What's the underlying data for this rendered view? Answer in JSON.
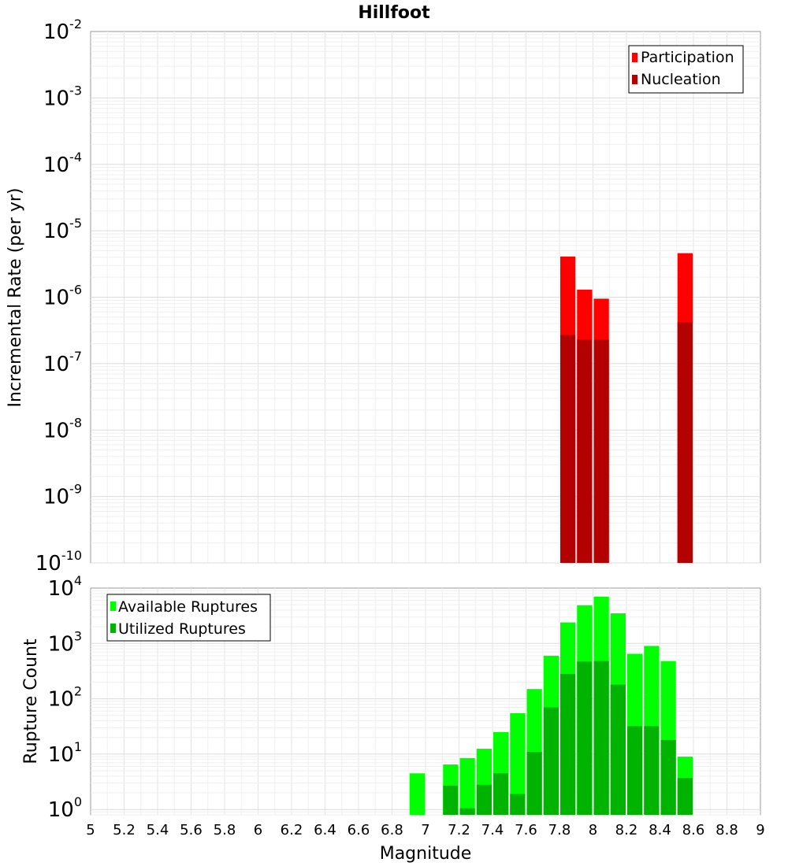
{
  "title": "Hillfoot",
  "chart_data": [
    {
      "type": "bar",
      "scale_y": "log",
      "ylabel": "Incremental Rate (per yr)",
      "ylim": [
        1e-10,
        0.01
      ],
      "xlim": [
        5,
        9
      ],
      "y_tick_labels": [
        {
          "base": "10",
          "exp": "-10",
          "v": 1e-10
        },
        {
          "base": "10",
          "exp": "-9",
          "v": 1e-09
        },
        {
          "base": "10",
          "exp": "-8",
          "v": 1e-08
        },
        {
          "base": "10",
          "exp": "-7",
          "v": 1e-07
        },
        {
          "base": "10",
          "exp": "-6",
          "v": 1e-06
        },
        {
          "base": "10",
          "exp": "-5",
          "v": 1e-05
        },
        {
          "base": "10",
          "exp": "-4",
          "v": 0.0001
        },
        {
          "base": "10",
          "exp": "-3",
          "v": 0.001
        },
        {
          "base": "10",
          "exp": "-2",
          "v": 0.01
        }
      ],
      "legend": {
        "placement": "top-right",
        "entries": [
          "Participation",
          "Nucleation"
        ]
      },
      "series": [
        {
          "name": "Participation",
          "color": "#ff0000",
          "points": [
            [
              7.85,
              4.1e-06
            ],
            [
              7.95,
              1.3e-06
            ],
            [
              8.05,
              9.5e-07
            ],
            [
              8.55,
              4.6e-06
            ]
          ]
        },
        {
          "name": "Nucleation",
          "color": "#b30000",
          "points": [
            [
              7.85,
              2.7e-07
            ],
            [
              7.95,
              2.3e-07
            ],
            [
              8.05,
              2.3e-07
            ],
            [
              8.55,
              4.2e-07
            ]
          ]
        }
      ]
    },
    {
      "type": "bar",
      "scale_y": "log",
      "ylabel": "Rupture Count",
      "xlabel": "Magnitude",
      "ylim": [
        0.8,
        10000
      ],
      "xlim": [
        5,
        9
      ],
      "x_ticks": [
        "5",
        "5.2",
        "5.4",
        "5.6",
        "5.8",
        "6",
        "6.2",
        "6.4",
        "6.6",
        "6.8",
        "7",
        "7.2",
        "7.4",
        "7.6",
        "7.8",
        "8",
        "8.2",
        "8.4",
        "8.6",
        "8.8",
        "9"
      ],
      "y_tick_labels": [
        {
          "base": "10",
          "exp": "0",
          "v": 1
        },
        {
          "base": "10",
          "exp": "1",
          "v": 10
        },
        {
          "base": "10",
          "exp": "2",
          "v": 100
        },
        {
          "base": "10",
          "exp": "3",
          "v": 1000
        },
        {
          "base": "10",
          "exp": "4",
          "v": 10000
        }
      ],
      "legend": {
        "placement": "top-left",
        "entries": [
          "Available Ruptures",
          "Utilized Ruptures"
        ]
      },
      "series": [
        {
          "name": "Available Ruptures",
          "color": "#00ff00",
          "points": [
            [
              6.95,
              4.5
            ],
            [
              7.15,
              6.5
            ],
            [
              7.25,
              8.5
            ],
            [
              7.35,
              12.5
            ],
            [
              7.45,
              25
            ],
            [
              7.55,
              55
            ],
            [
              7.65,
              150
            ],
            [
              7.75,
              600
            ],
            [
              7.85,
              2400
            ],
            [
              7.95,
              4900
            ],
            [
              8.05,
              7000
            ],
            [
              8.15,
              3500
            ],
            [
              8.25,
              650
            ],
            [
              8.35,
              900
            ],
            [
              8.45,
              480
            ],
            [
              8.55,
              9
            ]
          ]
        },
        {
          "name": "Utilized Ruptures",
          "color": "#00b300",
          "points": [
            [
              7.15,
              2.7
            ],
            [
              7.25,
              1.05
            ],
            [
              7.35,
              2.8
            ],
            [
              7.45,
              4.5
            ],
            [
              7.55,
              1.9
            ],
            [
              7.65,
              11
            ],
            [
              7.75,
              70
            ],
            [
              7.85,
              280
            ],
            [
              7.95,
              470
            ],
            [
              8.05,
              480
            ],
            [
              8.15,
              180
            ],
            [
              8.25,
              32
            ],
            [
              8.35,
              32
            ],
            [
              8.45,
              18
            ],
            [
              8.55,
              3.7
            ]
          ]
        }
      ]
    }
  ]
}
